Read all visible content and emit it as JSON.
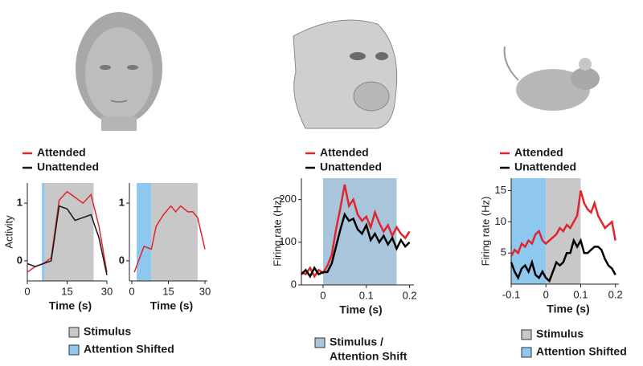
{
  "chart_data": [
    {
      "type": "line",
      "y_label": "Activity",
      "x_label": "Time (s)",
      "xlim": [
        0,
        30
      ],
      "ylim": [
        -0.35,
        1.35
      ],
      "xticks": [
        0,
        15,
        30
      ],
      "yticks": [
        0,
        1
      ],
      "bands": [
        {
          "name": "Attention Shifted",
          "color": "#8ec8ee",
          "range": [
            5.5,
            6.5
          ]
        },
        {
          "name": "Stimulus",
          "color": "#c8c8c8",
          "range": [
            6.5,
            25
          ]
        }
      ],
      "x": [
        0,
        3,
        6,
        9,
        12,
        15,
        18,
        21,
        24,
        27,
        30
      ],
      "series": [
        {
          "name": "Attended",
          "color": "#e0262d",
          "values": [
            -0.2,
            -0.1,
            -0.05,
            0.05,
            1.05,
            1.2,
            1.1,
            1.0,
            1.15,
            0.6,
            -0.2
          ]
        },
        {
          "name": "Unattended",
          "color": "#1a1a1a",
          "values": [
            -0.05,
            -0.1,
            -0.05,
            0.0,
            0.95,
            0.9,
            0.7,
            0.75,
            0.8,
            0.4,
            -0.25
          ]
        }
      ]
    },
    {
      "type": "line",
      "x_label": "Time (s)",
      "xlim": [
        -1,
        31
      ],
      "ylim": [
        -0.35,
        1.35
      ],
      "xticks": [
        0,
        15,
        30
      ],
      "yticks": [
        0,
        1
      ],
      "bands": [
        {
          "color": "#8ec8ee",
          "range": [
            2,
            8
          ]
        },
        {
          "color": "#c8c8c8",
          "range": [
            8,
            27
          ]
        }
      ],
      "x": [
        1,
        5,
        8,
        10,
        13,
        16,
        18,
        20,
        23,
        25,
        27,
        30
      ],
      "series": [
        {
          "color": "#e0262d",
          "values": [
            -0.2,
            0.25,
            0.2,
            0.6,
            0.8,
            0.95,
            0.85,
            0.95,
            0.85,
            0.85,
            0.75,
            0.2
          ]
        }
      ]
    },
    {
      "type": "line",
      "y_label": "Firing rate (Hz)",
      "x_label": "Time (s)",
      "xlim": [
        -0.05,
        0.21
      ],
      "ylim": [
        0,
        250
      ],
      "xticks": [
        0,
        0.1,
        0.2
      ],
      "yticks": [
        0,
        100,
        200
      ],
      "bands": [
        {
          "name": [
            "Stimulus /",
            "Attention Shift"
          ],
          "color": "#a9c6dc",
          "range": [
            0,
            0.17
          ]
        }
      ],
      "x": [
        -0.05,
        -0.04,
        -0.03,
        -0.02,
        -0.01,
        0,
        0.01,
        0.02,
        0.03,
        0.04,
        0.05,
        0.06,
        0.07,
        0.08,
        0.09,
        0.1,
        0.11,
        0.12,
        0.13,
        0.14,
        0.15,
        0.16,
        0.17,
        0.18,
        0.19,
        0.2
      ],
      "series": [
        {
          "name": "Attended",
          "color": "#e0262d",
          "values": [
            30,
            25,
            40,
            20,
            35,
            28,
            45,
            70,
            130,
            180,
            235,
            185,
            200,
            165,
            150,
            160,
            135,
            170,
            145,
            125,
            140,
            115,
            135,
            120,
            110,
            125
          ]
        },
        {
          "name": "Unattended",
          "color": "#000000",
          "values": [
            25,
            35,
            20,
            40,
            25,
            30,
            30,
            50,
            90,
            130,
            165,
            150,
            155,
            130,
            120,
            140,
            105,
            120,
            100,
            115,
            95,
            110,
            85,
            105,
            90,
            100
          ]
        }
      ]
    },
    {
      "type": "line",
      "y_label": "Firing rate (Hz)",
      "x_label": "Time (s)",
      "xlim": [
        -0.1,
        0.21
      ],
      "ylim": [
        0,
        17
      ],
      "xticks": [
        -0.1,
        0,
        0.1,
        0.2
      ],
      "yticks": [
        5,
        10,
        15
      ],
      "bands": [
        {
          "name": "Attention Shifted",
          "color": "#8ec8ee",
          "range": [
            -0.1,
            0
          ]
        },
        {
          "name": "Stimulus",
          "color": "#c8c8c8",
          "range": [
            0,
            0.1
          ]
        }
      ],
      "x": [
        -0.1,
        -0.09,
        -0.08,
        -0.07,
        -0.06,
        -0.05,
        -0.04,
        -0.03,
        -0.02,
        -0.01,
        0,
        0.01,
        0.02,
        0.03,
        0.04,
        0.05,
        0.06,
        0.07,
        0.08,
        0.09,
        0.1,
        0.11,
        0.12,
        0.13,
        0.14,
        0.15,
        0.16,
        0.17,
        0.18,
        0.19,
        0.2
      ],
      "series": [
        {
          "name": "Attended",
          "color": "#e0262d",
          "values": [
            4.5,
            5.5,
            5,
            6.5,
            6,
            7,
            6.5,
            8,
            8.5,
            7,
            6.5,
            7,
            7.5,
            8,
            9,
            8.5,
            9.5,
            9,
            10,
            11,
            15,
            13,
            12,
            11.5,
            13,
            11,
            10,
            9,
            9.5,
            10,
            7
          ]
        },
        {
          "name": "Unattended",
          "color": "#000000",
          "values": [
            3.5,
            2,
            1,
            2.5,
            3,
            2,
            3.5,
            1.5,
            1,
            2,
            1,
            0.5,
            2,
            3.5,
            3,
            3.5,
            5,
            5,
            7,
            6,
            7,
            5,
            5,
            5.5,
            6,
            6,
            5.5,
            4,
            3,
            2.5,
            1.5
          ]
        }
      ]
    }
  ]
}
